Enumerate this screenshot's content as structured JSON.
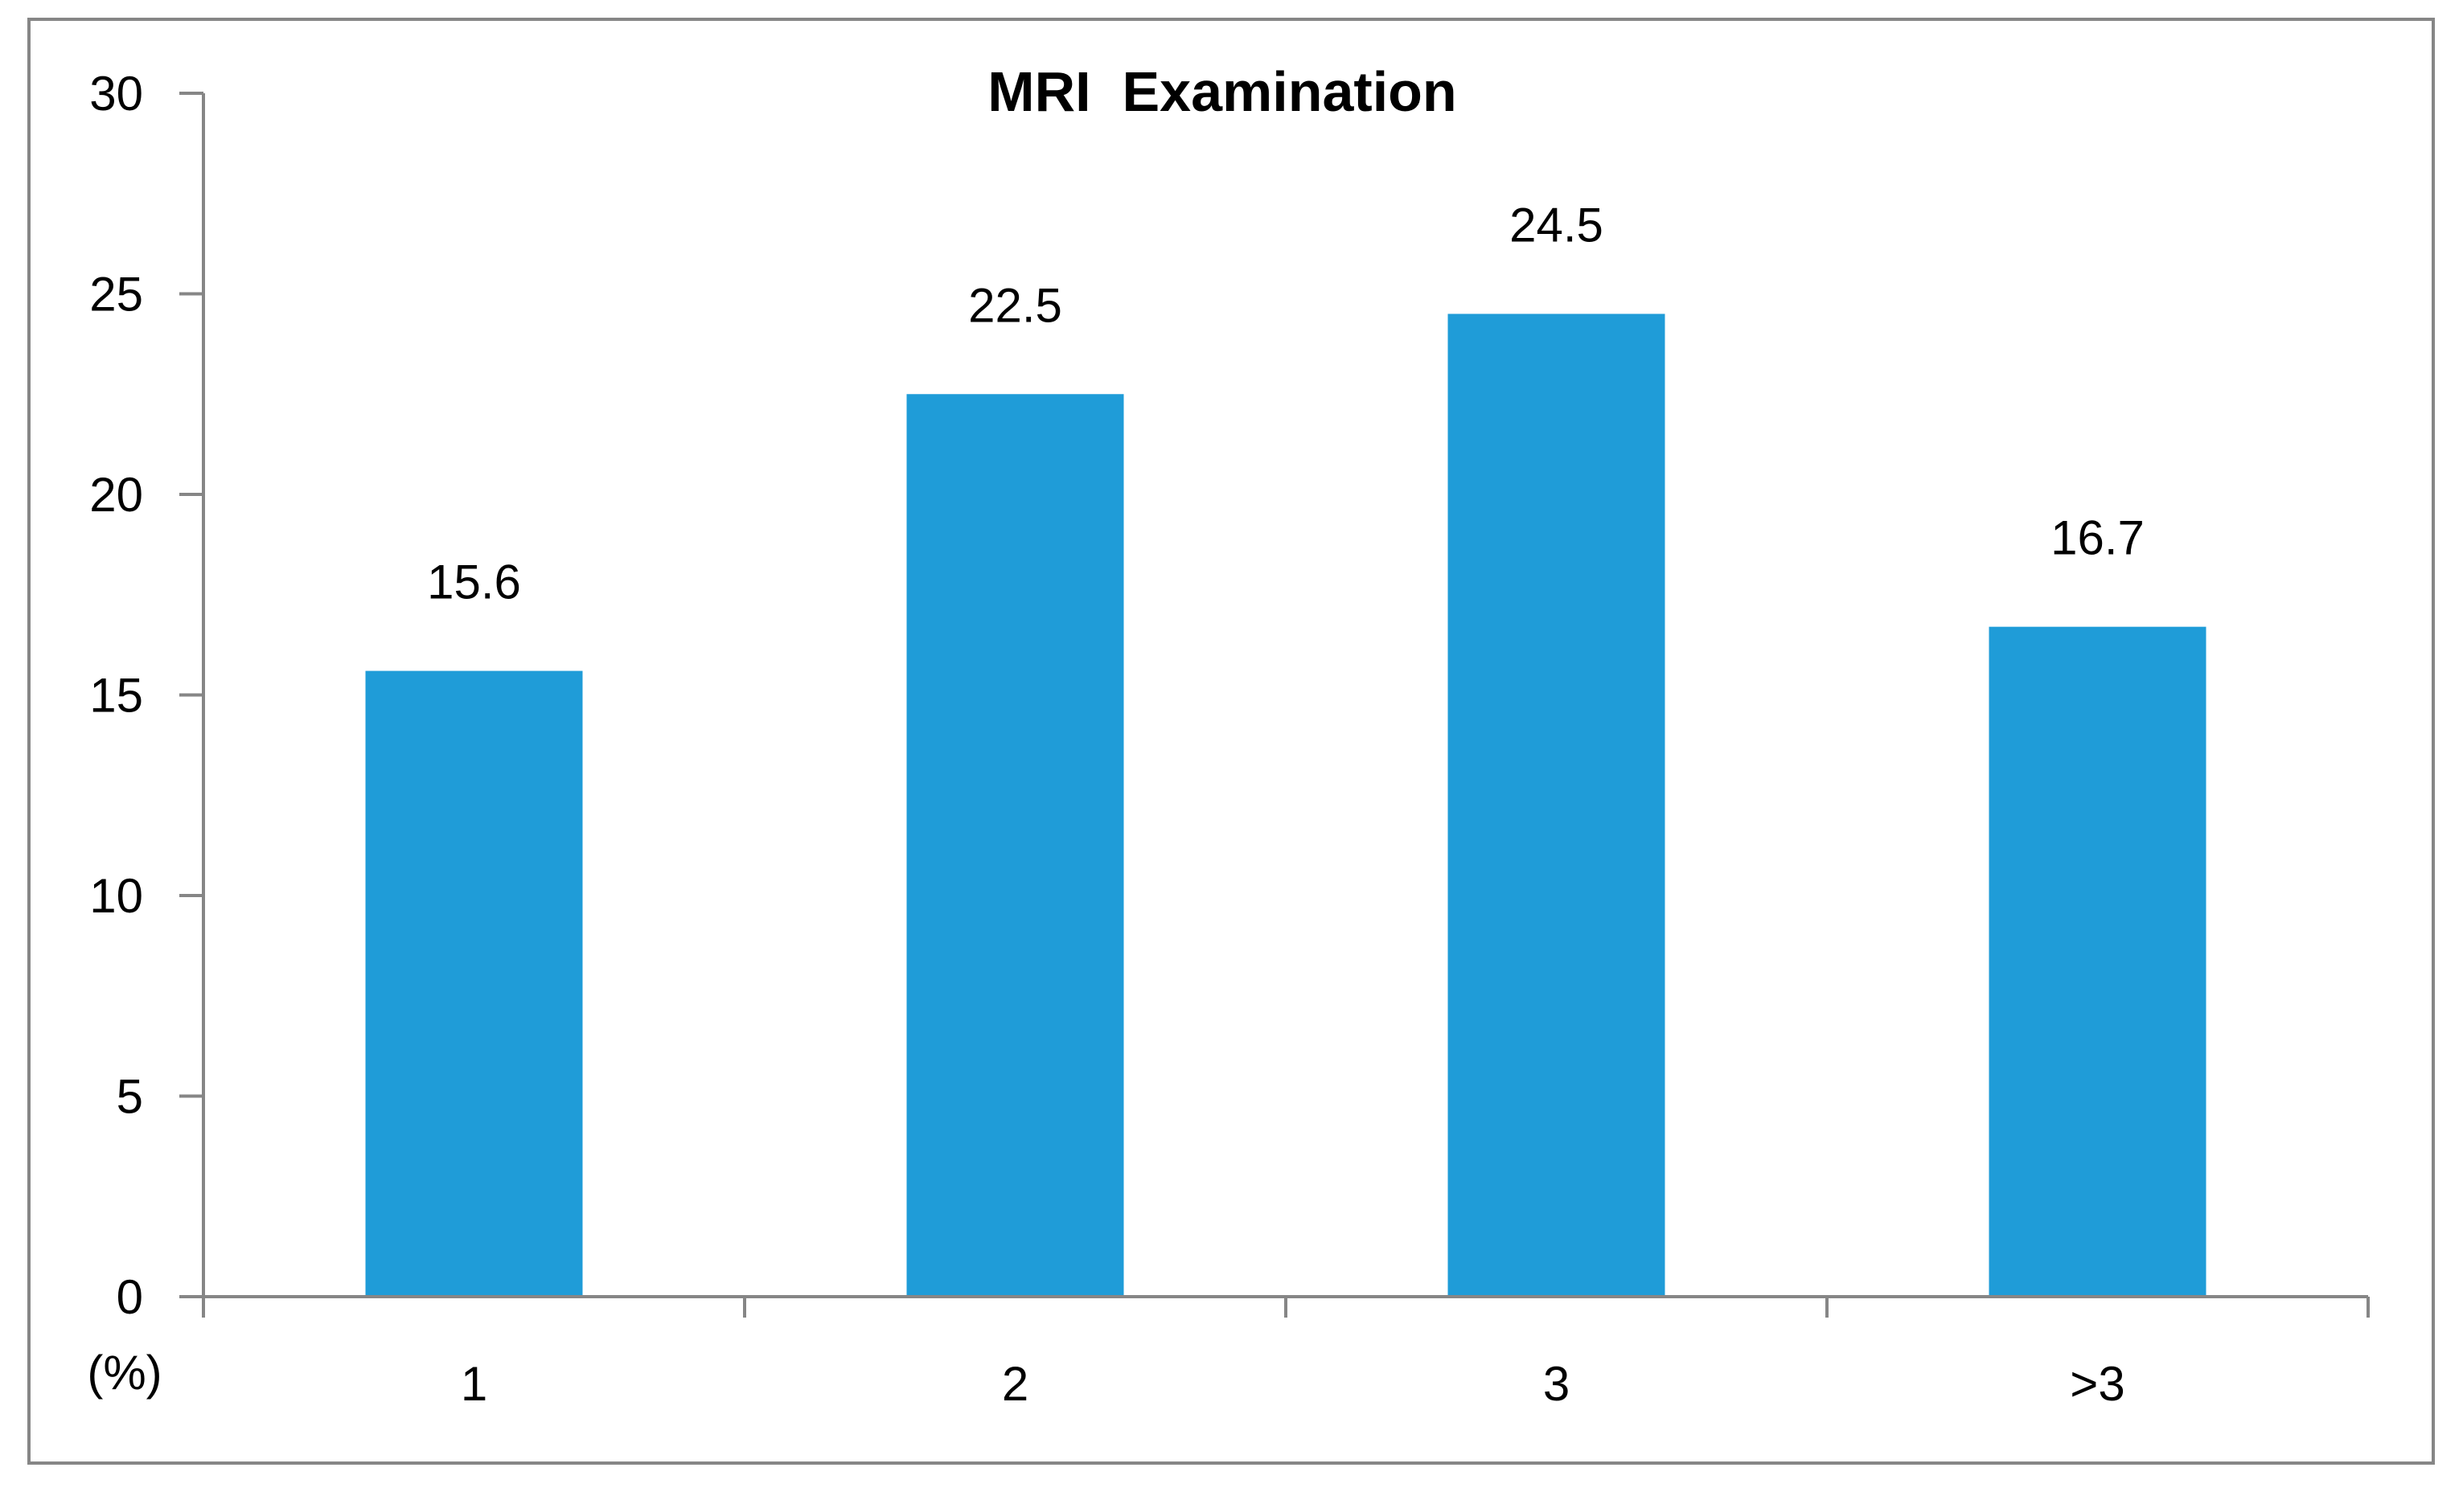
{
  "chart_data": {
    "type": "bar",
    "title": "MRI  Examination",
    "xlabel": "",
    "ylabel": "(%)",
    "categories": [
      "1",
      "2",
      "3",
      ">3"
    ],
    "series": [
      {
        "values": [
          15.6,
          22.5,
          24.5,
          16.7
        ]
      }
    ],
    "data_labels": [
      "15.6",
      "22.5",
      "24.5",
      "16.7"
    ],
    "ylim": [
      0,
      30
    ],
    "yticks": [
      0,
      5,
      10,
      15,
      20,
      25,
      30
    ],
    "ytick_labels": [
      "0",
      "5",
      "10",
      "15",
      "20",
      "25",
      "30"
    ],
    "grid": false,
    "legend": "none",
    "colors": {
      "bar": "#1f9cd8",
      "axis": "#868686",
      "border": "#868686",
      "text": "#000000"
    }
  }
}
